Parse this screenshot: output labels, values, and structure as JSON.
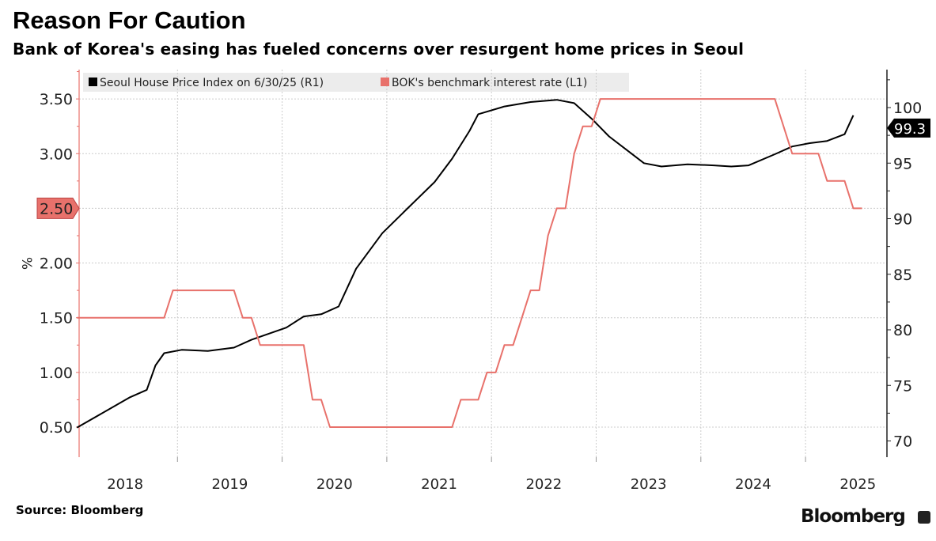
{
  "title": "Reason For Caution",
  "subtitle": "Bank of Korea's easing has fueled concerns over resurgent home prices in Seoul",
  "source": "Source: Bloomberg",
  "brand": "Bloomberg",
  "chart_data": {
    "type": "line",
    "grid": true,
    "legend_placement": "top-left",
    "x_tick_labels": [
      "2018",
      "2019",
      "2020",
      "2021",
      "2022",
      "2023",
      "2024",
      "2025"
    ],
    "xlim": [
      "2018-01",
      "2025-12"
    ],
    "left_axis": {
      "label": "%",
      "ticks": [
        "0.50",
        "1.00",
        "1.50",
        "2.00",
        "2.50",
        "3.00",
        "3.50"
      ],
      "ylim": [
        0.25,
        3.75
      ]
    },
    "right_axis": {
      "ticks": [
        "70",
        "75",
        "80",
        "85",
        "90",
        "95",
        "100"
      ],
      "ylim": [
        68.5,
        103
      ]
    },
    "series": [
      {
        "name": "Seoul House Price Index on 6/30/25 (R1)",
        "axis": "right",
        "color": "#000000",
        "last_value_label": "99.3",
        "points": [
          [
            "2018-01",
            71.2
          ],
          [
            "2018-05",
            73.0
          ],
          [
            "2018-07",
            73.9
          ],
          [
            "2018-09",
            74.6
          ],
          [
            "2018-10",
            76.8
          ],
          [
            "2018-11",
            77.9
          ],
          [
            "2019-01",
            78.2
          ],
          [
            "2019-04",
            78.1
          ],
          [
            "2019-07",
            78.4
          ],
          [
            "2019-09",
            79.1
          ],
          [
            "2020-01",
            80.2
          ],
          [
            "2020-03",
            81.2
          ],
          [
            "2020-05",
            81.4
          ],
          [
            "2020-07",
            82.1
          ],
          [
            "2020-09",
            85.5
          ],
          [
            "2020-12",
            88.7
          ],
          [
            "2021-03",
            91.0
          ],
          [
            "2021-06",
            93.3
          ],
          [
            "2021-08",
            95.4
          ],
          [
            "2021-10",
            97.9
          ],
          [
            "2021-11",
            99.4
          ],
          [
            "2022-02",
            100.1
          ],
          [
            "2022-05",
            100.5
          ],
          [
            "2022-08",
            100.7
          ],
          [
            "2022-10",
            100.4
          ],
          [
            "2022-12",
            99.0
          ],
          [
            "2023-02",
            97.4
          ],
          [
            "2023-04",
            96.2
          ],
          [
            "2023-06",
            95.0
          ],
          [
            "2023-08",
            94.7
          ],
          [
            "2023-11",
            94.9
          ],
          [
            "2024-02",
            94.8
          ],
          [
            "2024-04",
            94.7
          ],
          [
            "2024-06",
            94.8
          ],
          [
            "2024-09",
            95.8
          ],
          [
            "2024-11",
            96.5
          ],
          [
            "2025-01",
            96.8
          ],
          [
            "2025-03",
            97.0
          ],
          [
            "2025-05",
            97.6
          ],
          [
            "2025-06",
            99.3
          ]
        ]
      },
      {
        "name": "BOK's benchmark interest rate (L1)",
        "axis": "left",
        "color": "#e8716b",
        "last_value_label": "2.50",
        "points": [
          [
            "2018-01",
            1.5
          ],
          [
            "2018-11",
            1.5
          ],
          [
            "2018-12",
            1.75
          ],
          [
            "2019-07",
            1.75
          ],
          [
            "2019-08",
            1.5
          ],
          [
            "2019-09",
            1.5
          ],
          [
            "2019-10",
            1.25
          ],
          [
            "2020-03",
            1.25
          ],
          [
            "2020-04",
            0.75
          ],
          [
            "2020-05",
            0.75
          ],
          [
            "2020-06",
            0.5
          ],
          [
            "2021-08",
            0.5
          ],
          [
            "2021-09",
            0.75
          ],
          [
            "2021-11",
            0.75
          ],
          [
            "2021-12",
            1.0
          ],
          [
            "2022-01",
            1.0
          ],
          [
            "2022-02",
            1.25
          ],
          [
            "2022-03",
            1.25
          ],
          [
            "2022-04",
            1.5
          ],
          [
            "2022-05",
            1.75
          ],
          [
            "2022-06",
            1.75
          ],
          [
            "2022-07",
            2.25
          ],
          [
            "2022-08",
            2.5
          ],
          [
            "2022-09",
            2.5
          ],
          [
            "2022-10",
            3.0
          ],
          [
            "2022-11",
            3.25
          ],
          [
            "2022-12",
            3.25
          ],
          [
            "2023-01",
            3.5
          ],
          [
            "2024-09",
            3.5
          ],
          [
            "2024-10",
            3.25
          ],
          [
            "2024-11",
            3.0
          ],
          [
            "2025-02",
            3.0
          ],
          [
            "2025-03",
            2.75
          ],
          [
            "2025-05",
            2.75
          ],
          [
            "2025-06",
            2.5
          ],
          [
            "2025-07",
            2.5
          ]
        ]
      }
    ]
  }
}
